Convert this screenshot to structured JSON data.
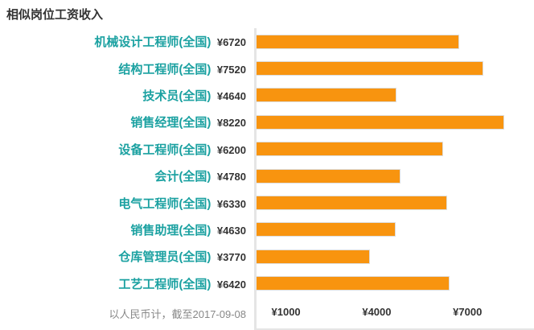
{
  "title": "相似岗位工资收入",
  "footer": {
    "note": "以人民币计，截至2017-09-08"
  },
  "colors": {
    "bar": "#F8940F",
    "bar_border": "#DDDDDD",
    "label_teal": "#1BA1A1",
    "text_dark": "#333333",
    "axis_gray": "#E5E5E5",
    "note_gray": "#888888",
    "background": "#FFFFFF"
  },
  "chart_data": {
    "type": "bar",
    "orientation": "horizontal",
    "title": "相似岗位工资收入",
    "categories": [
      "机械设计工程师(全国)",
      "结构工程师(全国)",
      "技术员(全国)",
      "销售经理(全国)",
      "设备工程师(全国)",
      "会计(全国)",
      "电气工程师(全国)",
      "销售助理(全国)",
      "仓库管理员(全国)",
      "工艺工程师(全国)"
    ],
    "values": [
      6720,
      7520,
      4640,
      8220,
      6200,
      4780,
      6330,
      4630,
      3770,
      6420
    ],
    "value_labels": [
      "¥6720",
      "¥7520",
      "¥4640",
      "¥8220",
      "¥6200",
      "¥4780",
      "¥6330",
      "¥4630",
      "¥3770",
      "¥6420"
    ],
    "xlabel": "",
    "ylabel": "",
    "xlim": [
      0,
      9200
    ],
    "xticks": [
      {
        "value": 1000,
        "label": "¥1000"
      },
      {
        "value": 4000,
        "label": "¥4000"
      },
      {
        "value": 7000,
        "label": "¥7000"
      }
    ],
    "grid": false,
    "legend": "none",
    "note": "以人民币计，截至2017-09-08",
    "currency": "CNY"
  }
}
